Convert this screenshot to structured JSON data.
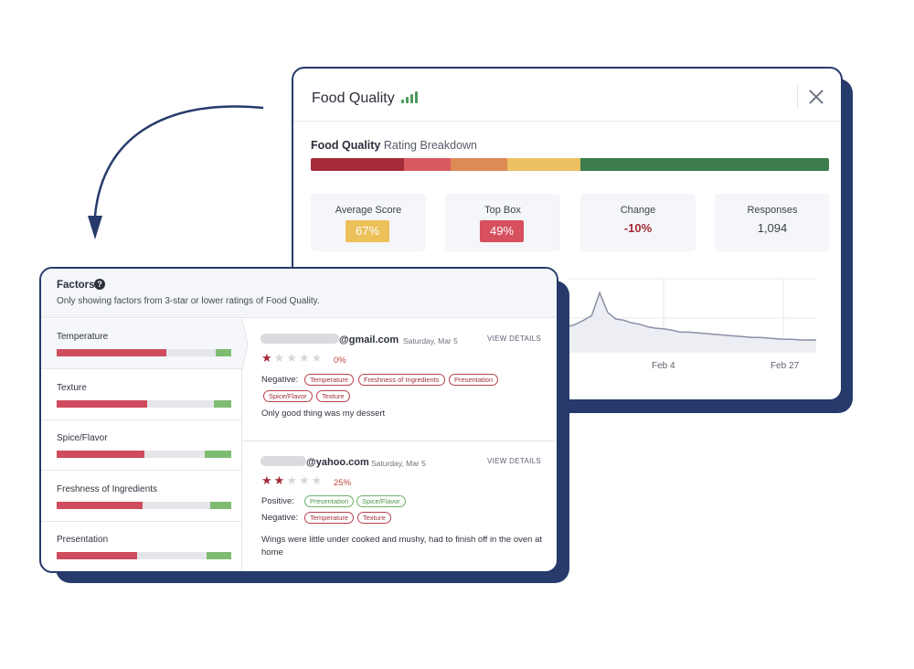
{
  "colors": {
    "navy": "#263a6b",
    "rating_segments": [
      "#a42b37",
      "#d95a61",
      "#de8a55",
      "#ebc063",
      "#3e7d4d"
    ],
    "average_badge": "#ecc15a",
    "topbox_badge": "#d6505d",
    "change_text": "#a52a36",
    "negative_bar": "#cf4b5e",
    "positive_bar": "#7ebc72"
  },
  "food_quality": {
    "title": "Food Quality",
    "title_icon": "signal-bars-icon",
    "close_icon": "close-icon",
    "breakdown_bold": "Food Quality",
    "breakdown_rest": " Rating Breakdown",
    "rating_breakdown_shares": [
      0.18,
      0.09,
      0.11,
      0.14,
      0.48
    ],
    "stats": [
      {
        "label": "Average Score",
        "value": "67%"
      },
      {
        "label": "Top Box",
        "value": "49%"
      },
      {
        "label": "Change",
        "value": "-10%"
      },
      {
        "label": "Responses",
        "value": "1,094"
      }
    ]
  },
  "chart_data": {
    "type": "area",
    "title": "",
    "xlabel": "",
    "ylabel": "",
    "x_tick_labels": [
      "Feb 4",
      "Feb 27"
    ],
    "grid": true,
    "values": [
      0.38,
      0.42,
      0.48,
      0.55,
      0.9,
      0.6,
      0.5,
      0.48,
      0.44,
      0.42,
      0.38,
      0.36,
      0.35,
      0.33,
      0.3,
      0.3,
      0.29,
      0.28,
      0.27,
      0.26,
      0.25,
      0.24,
      0.23,
      0.22,
      0.22,
      0.21,
      0.2,
      0.19,
      0.19,
      0.18,
      0.18,
      0.18
    ]
  },
  "factors": {
    "title": "Factors",
    "help_icon": "question-circle-icon",
    "subtitle": "Only showing factors from 3-star or lower ratings of Food Quality.",
    "items": [
      {
        "name": "Temperature",
        "negative": 0.63,
        "positive": 0.09
      },
      {
        "name": "Texture",
        "negative": 0.52,
        "positive": 0.1
      },
      {
        "name": "Spice/Flavor",
        "negative": 0.5,
        "positive": 0.15
      },
      {
        "name": "Freshness of Ingredients",
        "negative": 0.49,
        "positive": 0.12
      },
      {
        "name": "Presentation",
        "negative": 0.46,
        "positive": 0.14
      }
    ]
  },
  "reviews": [
    {
      "email_domain": "@gmail.com",
      "date": "Saturday, Mar 5",
      "view_label": "VIEW DETAILS",
      "stars": 1,
      "star_max": 5,
      "percent": "0%",
      "negative_label": "Negative:",
      "negative_tags": [
        "Temperature",
        "Freshness of Ingredients",
        "Presentation",
        "Spice/Flavor",
        "Texture"
      ],
      "comment": "Only good thing was my dessert"
    },
    {
      "email_domain": "@yahoo.com",
      "date": "Saturday, Mar 5",
      "view_label": "VIEW DETAILS",
      "stars": 2,
      "star_max": 5,
      "percent": "25%",
      "positive_label": "Positive:",
      "positive_tags": [
        "Presentation",
        "Spice/Flavor"
      ],
      "negative_label": "Negative:",
      "negative_tags": [
        "Temperature",
        "Texture"
      ],
      "comment": "Wings were little under cooked and mushy, had to finish off in the oven at home"
    }
  ]
}
